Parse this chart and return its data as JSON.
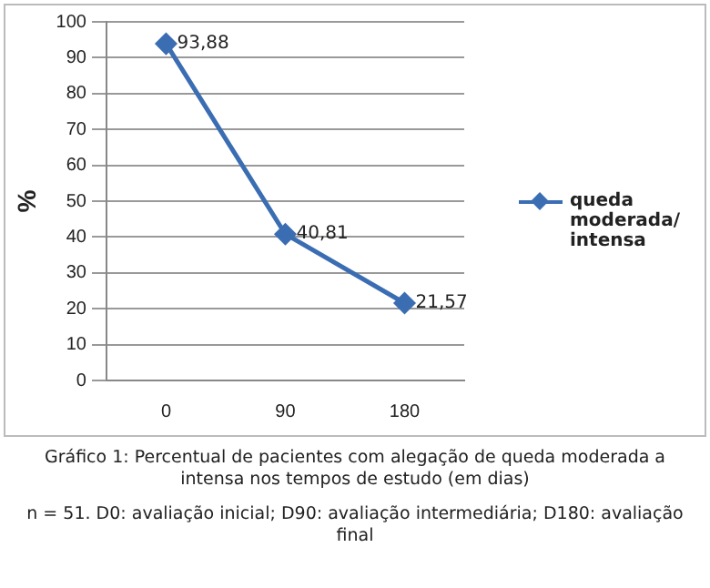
{
  "chart_data": {
    "type": "line",
    "ylabel": "%",
    "categories": [
      "0",
      "90",
      "180"
    ],
    "series": [
      {
        "name": "queda moderada/ intensa",
        "color": "#3b6db3",
        "values": [
          93.88,
          40.81,
          21.57
        ],
        "value_labels": [
          "93,88",
          "40,81",
          "21,57"
        ]
      }
    ],
    "ylim": [
      0,
      100
    ],
    "yticks": [
      0,
      10,
      20,
      30,
      40,
      50,
      60,
      70,
      80,
      90,
      100
    ],
    "grid": "y",
    "legend": "right",
    "marker": "diamond",
    "line_style": "solid",
    "annotations": [
      "Gráfico 1: Percentual de pacientes com alegação de queda moderada a intensa nos tempos de estudo (em dias)",
      "n = 51. D0: avaliação inicial; D90: avaliação intermediária; D180: avaliação final"
    ]
  }
}
